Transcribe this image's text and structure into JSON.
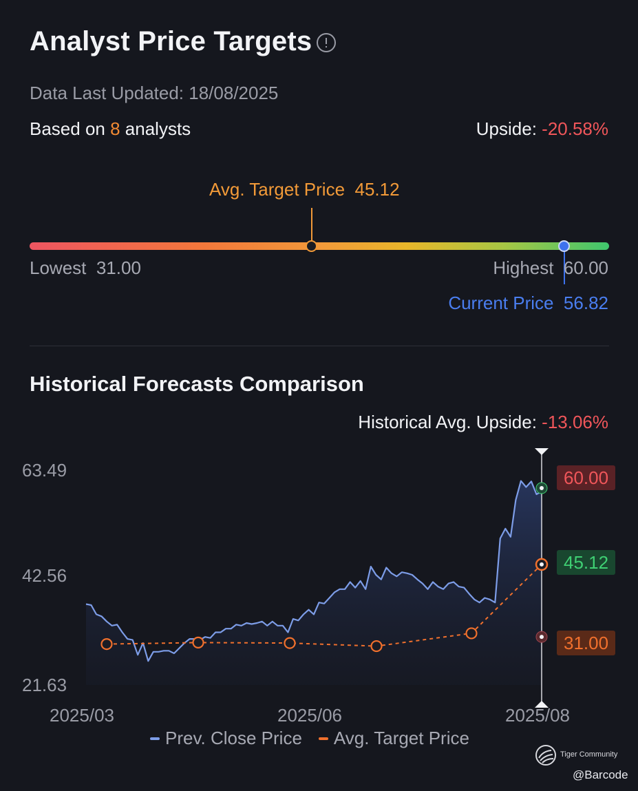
{
  "header": {
    "title": "Analyst Price Targets",
    "info_icon": "info-circle-icon",
    "updated": "Data Last Updated: 18/08/2025",
    "based_prefix": "Based on ",
    "analyst_count": "8",
    "based_suffix": " analysts",
    "upside_label": "Upside: ",
    "upside_value": "-20.58%"
  },
  "range": {
    "avg_label": "Avg. Target Price",
    "avg_value": "45.12",
    "lowest_label": "Lowest",
    "lowest_value": "31.00",
    "highest_label": "Highest",
    "highest_value": "60.00",
    "current_label": "Current Price",
    "current_value": "56.82",
    "low": 31.0,
    "high": 60.0,
    "avg": 45.12,
    "current": 56.82
  },
  "historical": {
    "title": "Historical Forecasts Comparison",
    "upside_label": "Historical Avg. Upside: ",
    "upside_value": "-13.06%",
    "tags": {
      "high": "60.00",
      "avg": "45.12",
      "low": "31.00"
    },
    "legend": {
      "prev_close": "Prev. Close Price",
      "avg_target": "Avg. Target Price"
    }
  },
  "colors": {
    "price_line": "#7d9de8",
    "target_line": "#f0702d",
    "red": "#f0565a",
    "green": "#3fcf73",
    "blue": "#4a7ef0",
    "orange": "#f28a33"
  },
  "chart_data": {
    "type": "line",
    "ylim": [
      21.63,
      63.49
    ],
    "yticks": [
      "63.49",
      "42.56",
      "21.63"
    ],
    "xticks": [
      "2025/03",
      "2025/06",
      "2025/08"
    ],
    "series": [
      {
        "name": "Prev. Close Price",
        "values": [
          37.4,
          37.2,
          35.4,
          35.0,
          34.0,
          33.2,
          33.4,
          31.9,
          30.6,
          30.4,
          27.5,
          29.8,
          26.3,
          28.1,
          28.1,
          28.3,
          28.3,
          27.8,
          28.8,
          29.8,
          30.6,
          30.6,
          30.4,
          31.0,
          30.8,
          31.9,
          31.9,
          32.6,
          32.6,
          33.4,
          33.2,
          33.7,
          33.5,
          33.7,
          34.0,
          33.2,
          34.0,
          33.2,
          33.2,
          31.9,
          34.5,
          34.2,
          35.4,
          36.3,
          35.4,
          37.7,
          37.5,
          38.6,
          39.7,
          40.3,
          40.3,
          41.7,
          40.6,
          41.9,
          40.3,
          44.7,
          43.1,
          42.2,
          44.5,
          43.4,
          42.8,
          43.6,
          43.4,
          43.1,
          42.2,
          41.4,
          40.3,
          41.7,
          40.8,
          40.3,
          41.4,
          41.7,
          40.8,
          40.6,
          39.4,
          38.3,
          37.7,
          38.6,
          38.3,
          37.7,
          50.2,
          52.1,
          50.5,
          57.7,
          61.4,
          60.2,
          61.3,
          58.8,
          59.4
        ],
        "start_label": "2025/03",
        "end_label": "2025/08"
      },
      {
        "name": "Avg. Target Price",
        "values": [
          29.6,
          29.9,
          29.8,
          29.2,
          31.7,
          45.12
        ],
        "dates": [
          "2025/03",
          "2025/04",
          "2025/05",
          "2025/06",
          "2025/07",
          "2025/08"
        ]
      }
    ],
    "markers": {
      "high": 60.0,
      "avg": 45.12,
      "low": 31.0
    },
    "grid": false,
    "legend": "bottom-center"
  }
}
